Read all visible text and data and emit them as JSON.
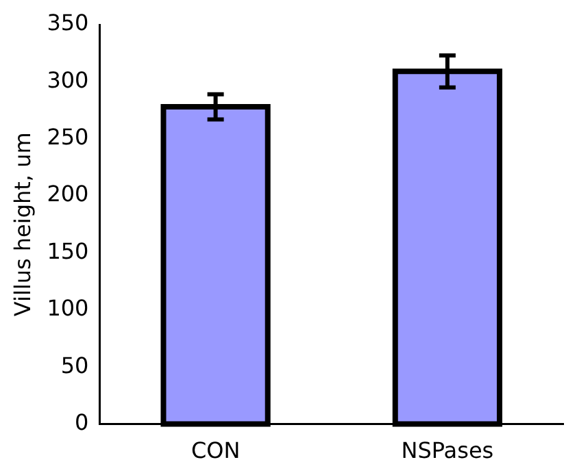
{
  "chart_data": {
    "type": "bar",
    "ylabel": "Villus height, um",
    "categories": [
      "CON",
      "NSPases"
    ],
    "values": [
      278,
      309
    ],
    "errors": [
      11,
      14
    ],
    "color": "#9999ff",
    "ylim": [
      0,
      350
    ],
    "yticks": [
      0,
      50,
      100,
      150,
      200,
      250,
      300,
      350
    ],
    "grid": false
  }
}
